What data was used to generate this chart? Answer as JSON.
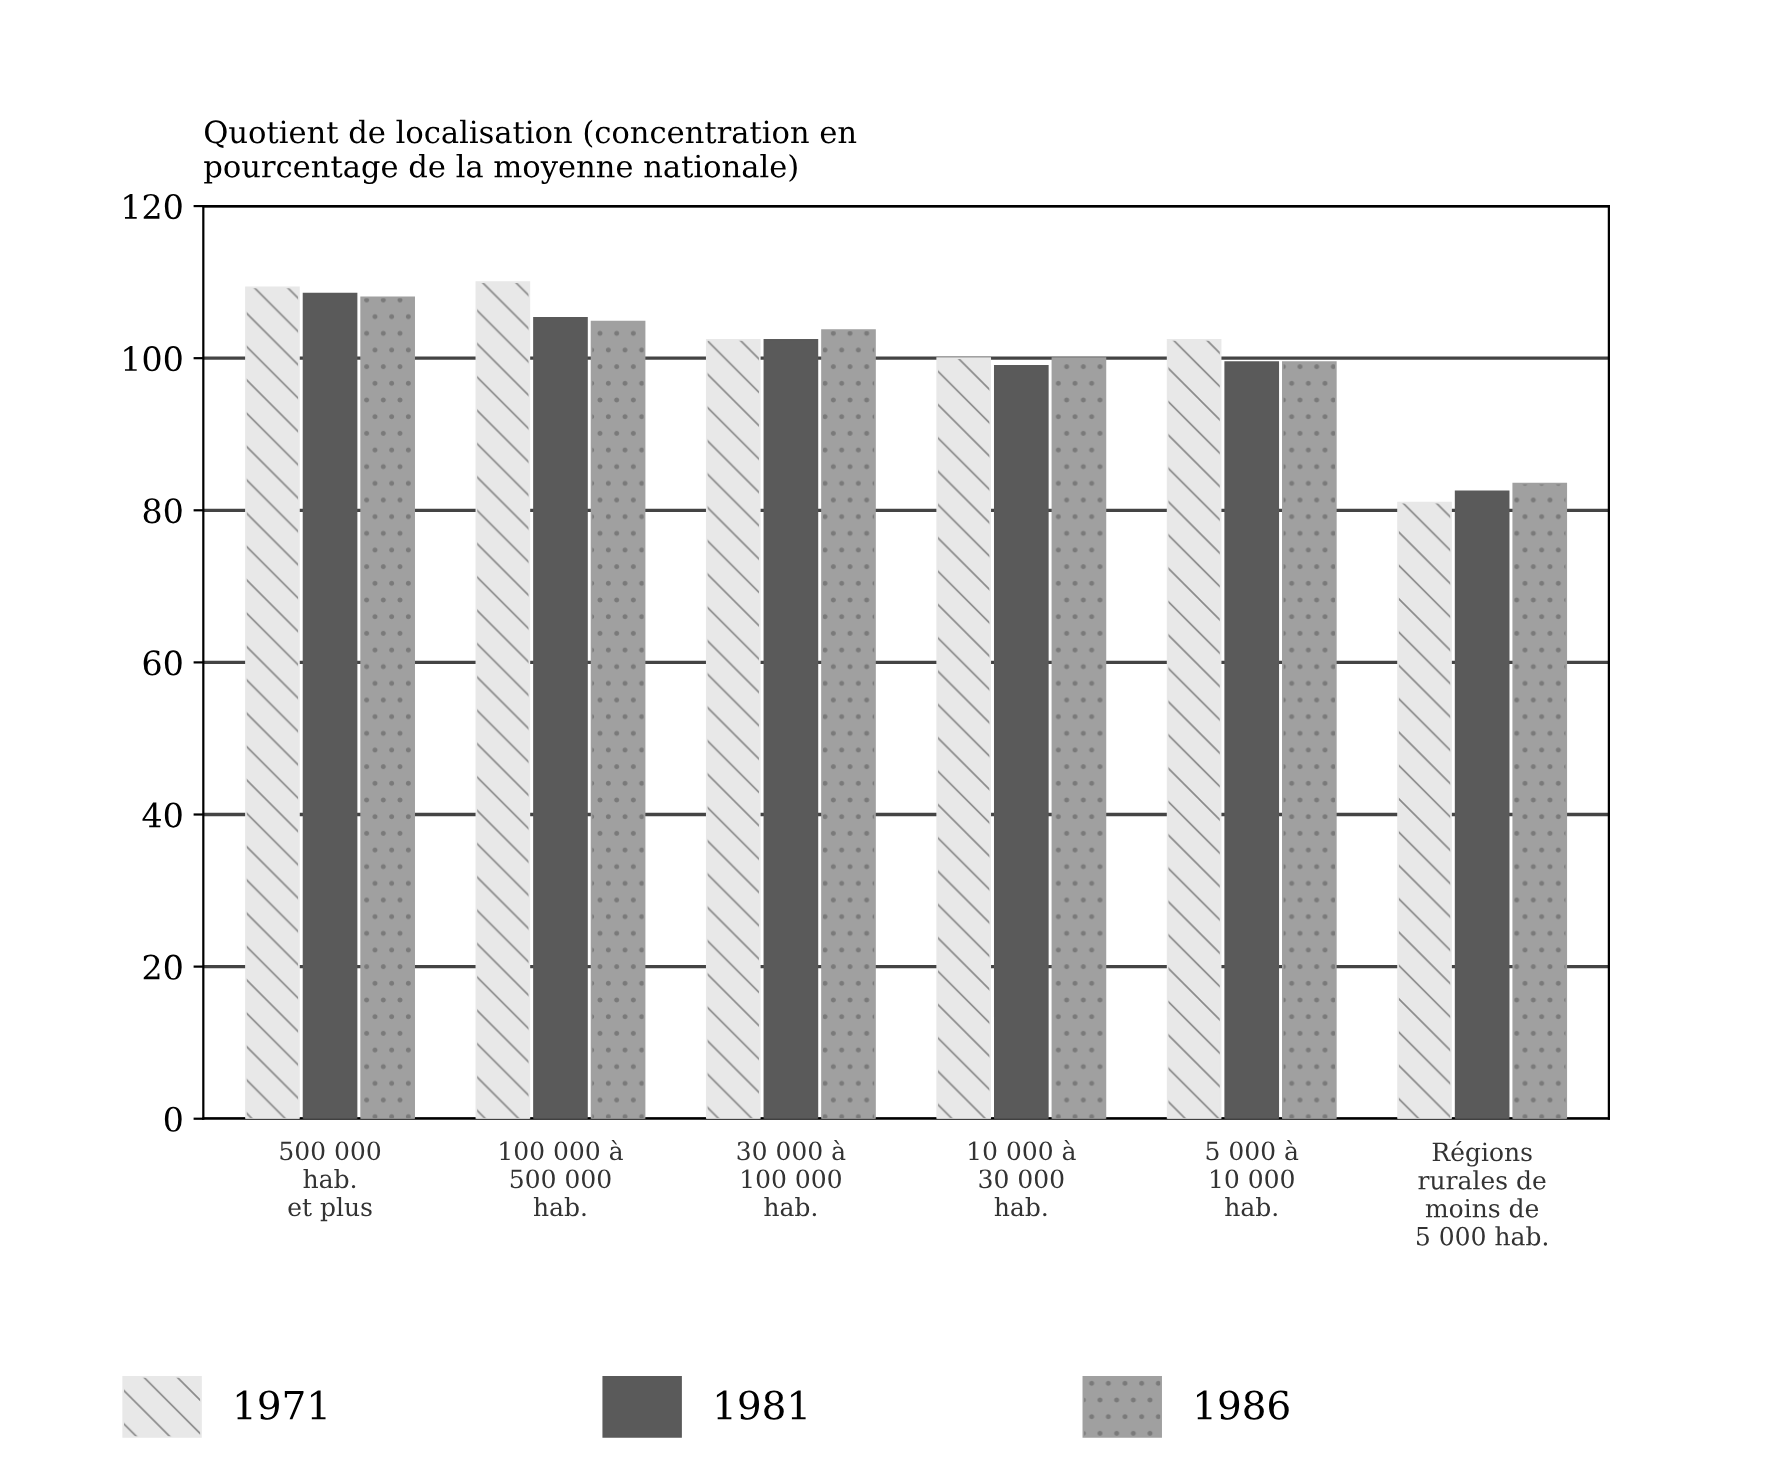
{
  "chart_data": {
    "type": "bar",
    "ylabel": "Quotient de localisation (concentration en\npourcentage de la moyenne nationale)",
    "categories": [
      "500 000\nhab.\net plus",
      "100 000 à\n500 000\nhab.",
      "30 000 à\n100 000\nhab.",
      "10 000 à\n30 000\nhab.",
      "5 000 à\n10 000\nhab.",
      "Régions\nrurales de\nmoins de\n5 000 hab."
    ],
    "series": [
      {
        "name": "1971",
        "color": "#e8e8e8",
        "values": [
          109.3,
          110,
          102.4,
          100,
          102.4,
          81
        ]
      },
      {
        "name": "1981",
        "color": "#5a5a5a",
        "values": [
          108.5,
          105.3,
          102.4,
          99,
          99.5,
          82.5
        ]
      },
      {
        "name": "1986",
        "color": "#a0a0a0",
        "values": [
          108,
          104.8,
          103.7,
          100,
          99.5,
          83.5
        ]
      }
    ],
    "ylim": [
      0,
      120
    ],
    "yticks": [
      0,
      20,
      40,
      60,
      80,
      100,
      120
    ],
    "grid": "y",
    "legend": "bottom"
  }
}
